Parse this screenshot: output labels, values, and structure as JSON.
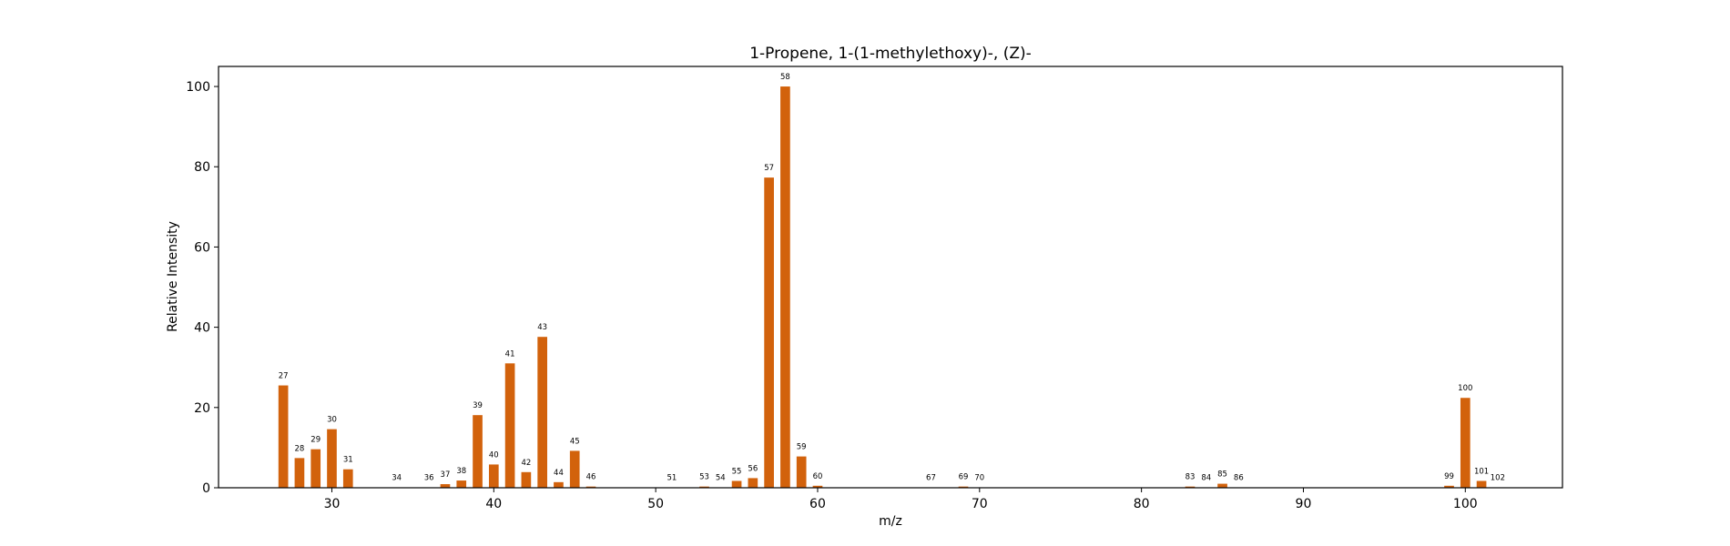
{
  "chart_data": {
    "type": "bar",
    "title": "1-Propene, 1-(1-methylethoxy)-, (Z)-",
    "xlabel": "m/z",
    "ylabel": "Relative Intensity",
    "xlim": [
      23,
      106
    ],
    "ylim": [
      0,
      105
    ],
    "xticks": [
      30,
      40,
      50,
      60,
      70,
      80,
      90,
      100
    ],
    "yticks": [
      0,
      20,
      40,
      60,
      80,
      100
    ],
    "bar_color": "#d2620c",
    "grid": false,
    "legend": "none",
    "peaks": [
      {
        "mz": 27,
        "intensity": 25.5
      },
      {
        "mz": 28,
        "intensity": 7.4
      },
      {
        "mz": 29,
        "intensity": 9.6
      },
      {
        "mz": 30,
        "intensity": 14.6
      },
      {
        "mz": 31,
        "intensity": 4.6
      },
      {
        "mz": 34,
        "intensity": 0.1
      },
      {
        "mz": 36,
        "intensity": 0.1
      },
      {
        "mz": 37,
        "intensity": 0.9
      },
      {
        "mz": 38,
        "intensity": 1.8
      },
      {
        "mz": 39,
        "intensity": 18.1
      },
      {
        "mz": 40,
        "intensity": 5.8
      },
      {
        "mz": 41,
        "intensity": 31.0
      },
      {
        "mz": 42,
        "intensity": 3.9
      },
      {
        "mz": 43,
        "intensity": 37.6
      },
      {
        "mz": 44,
        "intensity": 1.4
      },
      {
        "mz": 45,
        "intensity": 9.2
      },
      {
        "mz": 46,
        "intensity": 0.3
      },
      {
        "mz": 51,
        "intensity": 0.1
      },
      {
        "mz": 53,
        "intensity": 0.3
      },
      {
        "mz": 54,
        "intensity": 0.1
      },
      {
        "mz": 55,
        "intensity": 1.7
      },
      {
        "mz": 56,
        "intensity": 2.4
      },
      {
        "mz": 57,
        "intensity": 77.3
      },
      {
        "mz": 58,
        "intensity": 100
      },
      {
        "mz": 59,
        "intensity": 7.8
      },
      {
        "mz": 60,
        "intensity": 0.5
      },
      {
        "mz": 67,
        "intensity": 0.1
      },
      {
        "mz": 69,
        "intensity": 0.3
      },
      {
        "mz": 70,
        "intensity": 0.1
      },
      {
        "mz": 83,
        "intensity": 0.3
      },
      {
        "mz": 84,
        "intensity": 0.1
      },
      {
        "mz": 85,
        "intensity": 1.0
      },
      {
        "mz": 86,
        "intensity": 0.1
      },
      {
        "mz": 99,
        "intensity": 0.5
      },
      {
        "mz": 100,
        "intensity": 22.4
      },
      {
        "mz": 101,
        "intensity": 1.7
      },
      {
        "mz": 102,
        "intensity": 0.1
      }
    ]
  }
}
